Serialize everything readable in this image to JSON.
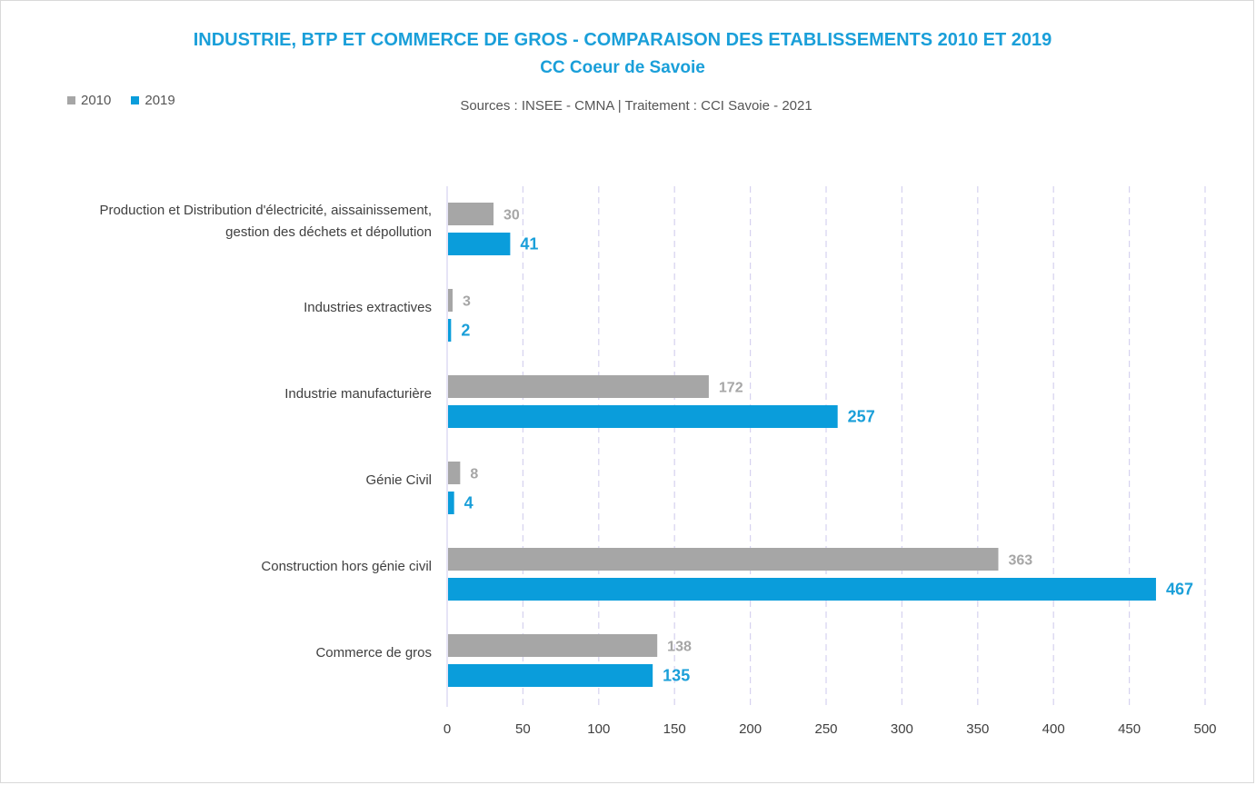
{
  "chart_data": {
    "type": "bar",
    "orientation": "horizontal",
    "title": "INDUSTRIE, BTP ET COMMERCE DE GROS - COMPARAISON DES ETABLISSEMENTS 2010 ET 2019",
    "subtitle": "CC Coeur de Savoie",
    "source": "Sources : INSEE - CMNA  |  Traitement : CCI Savoie - 2021",
    "categories": [
      [
        "Production et Distribution d'électricité, aissainissement,",
        "gestion des déchets et dépollution"
      ],
      [
        "Industries extractives"
      ],
      [
        "Industrie manufacturière"
      ],
      [
        "Génie Civil"
      ],
      [
        "Construction hors génie civil"
      ],
      [
        "Commerce de gros"
      ]
    ],
    "series": [
      {
        "name": "2010",
        "color": "#a6a6a6",
        "values": [
          30,
          3,
          172,
          8,
          363,
          138
        ]
      },
      {
        "name": "2019",
        "color": "#0a9ddb",
        "values": [
          41,
          2,
          257,
          4,
          467,
          135
        ]
      }
    ],
    "xlim": [
      0,
      500
    ],
    "xticks": [
      0,
      50,
      100,
      150,
      200,
      250,
      300,
      350,
      400,
      450,
      500
    ],
    "grid": "vertical dashed",
    "legend": "top-left"
  }
}
